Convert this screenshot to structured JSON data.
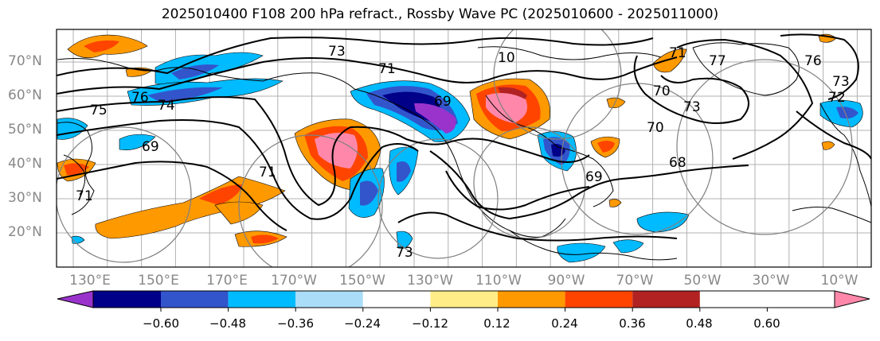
{
  "title": "2025010400 F108 200 hPa refract., Rossby Wave PC (2025010600 - 2025011000)",
  "map": {
    "projection": "Plate Carree, North Pacific – North Atlantic sector",
    "lon_labels": [
      "130°E",
      "150°E",
      "170°E",
      "170°W",
      "150°W",
      "130°W",
      "110°W",
      "90°W",
      "70°W",
      "50°W",
      "30°W",
      "10°W"
    ],
    "lat_labels": [
      "70°N",
      "60°N",
      "50°N",
      "40°N",
      "30°N",
      "20°N"
    ],
    "contour_labels": [
      "73",
      "71",
      "76",
      "75",
      "74",
      "69",
      "69",
      "70",
      "73",
      "77",
      "76",
      "68",
      "73",
      "72",
      "71",
      "10",
      "71",
      "70",
      "71",
      "69",
      "73"
    ],
    "features": [
      "coastlines",
      "black height contours",
      "grey Rossby wave path circles",
      "shaded refractive index anomalies"
    ]
  },
  "colorbar": {
    "tick_labels": [
      "−0.60",
      "−0.48",
      "−0.36",
      "−0.24",
      "−0.12",
      "0.12",
      "0.24",
      "0.36",
      "0.48",
      "0.60"
    ],
    "colors": [
      "#9933cc",
      "#000088",
      "#3355cc",
      "#00bbff",
      "#aaddf8",
      "#ffffff",
      "#ffee88",
      "#ff9900",
      "#ff4400",
      "#b22222",
      "#ff88aa"
    ],
    "extend": "both"
  }
}
